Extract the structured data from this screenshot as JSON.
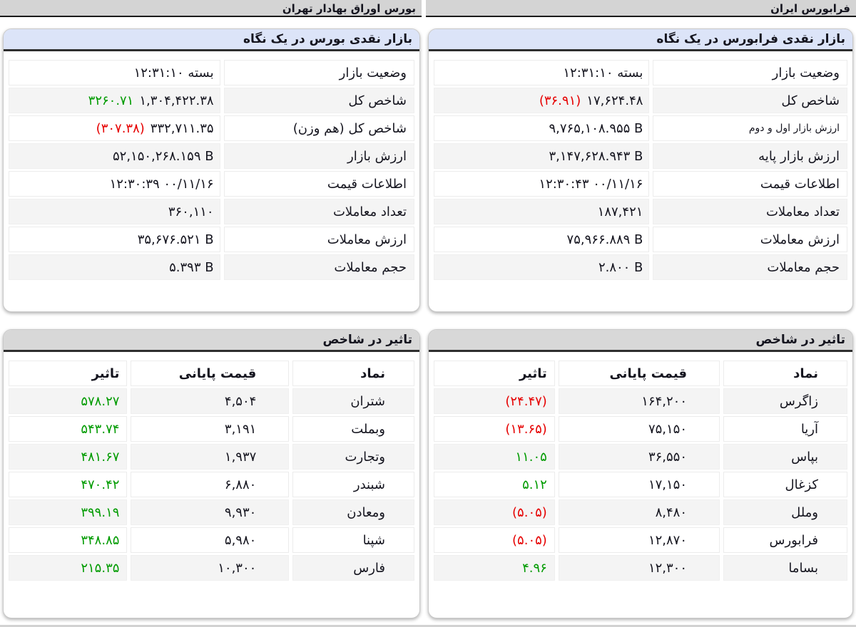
{
  "colors": {
    "positive": "#009b00",
    "negative": "#e60000",
    "summary_header": "#dce4f8",
    "table_header": "#d8d8d8",
    "section_bar": "#d4d4d4"
  },
  "sections": {
    "bourse_bar_title": "بورس اوراق بهادار تهران",
    "farabourse_bar_title": "فرابورس ایران"
  },
  "summary_bourse": {
    "title": "بازار نقدی بورس در یک نگاه",
    "rows": [
      {
        "label": "وضعیت بازار",
        "value": "بسته ۱۲:۳۱:۱۰"
      },
      {
        "label": "شاخص کل",
        "value": "۱,۳۰۴,۴۲۲.۳۸",
        "change": "۳۲۶۰.۷۱",
        "trend": "pos"
      },
      {
        "label": "شاخص کل (هم وزن)",
        "value": "۳۳۲,۷۱۱.۳۵",
        "change": "(۳۰۷.۳۸)",
        "trend": "neg"
      },
      {
        "label": "ارزش بازار",
        "value": "۵۲,۱۵۰,۲۶۸.۱۵۹ B"
      },
      {
        "label": "اطلاعات قیمت",
        "value": "۱۲:۳۰:۳۹ ۰۰/۱۱/۱۶"
      },
      {
        "label": "تعداد معاملات",
        "value": "۳۶۰,۱۱۰"
      },
      {
        "label": "ارزش معاملات",
        "value": "۳۵,۶۷۶.۵۲۱ B"
      },
      {
        "label": "حجم معاملات",
        "value": "۵.۳۹۳ B"
      }
    ]
  },
  "summary_farabourse": {
    "title": "بازار نقدی فرابورس در یک نگاه",
    "rows": [
      {
        "label": "وضعیت بازار",
        "value": "بسته ۱۲:۳۱:۱۰"
      },
      {
        "label": "شاخص کل",
        "value": "۱۷,۶۲۴.۴۸",
        "change": "(۳۶.۹۱)",
        "trend": "neg"
      },
      {
        "label": "ارزش بازار اول و دوم",
        "value": "۹,۷۶۵,۱۰۸.۹۵۵ B"
      },
      {
        "label": "ارزش بازار پایه",
        "value": "۳,۱۴۷,۶۲۸.۹۴۳ B"
      },
      {
        "label": "اطلاعات قیمت",
        "value": "۱۲:۳۰:۴۳ ۰۰/۱۱/۱۶"
      },
      {
        "label": "تعداد معاملات",
        "value": "۱۸۷,۴۲۱"
      },
      {
        "label": "ارزش معاملات",
        "value": "۷۵,۹۶۶.۸۸۹ B"
      },
      {
        "label": "حجم معاملات",
        "value": "۲.۸۰۰ B"
      }
    ]
  },
  "impact_bourse": {
    "title": "تاثیر در شاخص",
    "columns": {
      "symbol": "نماد",
      "close": "قیمت پایانی",
      "impact": "تاثیر"
    },
    "rows": [
      {
        "symbol": "شتران",
        "close": "۴,۵۰۴",
        "impact": "۵۷۸.۲۷",
        "trend": "pos"
      },
      {
        "symbol": "وبملت",
        "close": "۳,۱۹۱",
        "impact": "۵۴۳.۷۴",
        "trend": "pos"
      },
      {
        "symbol": "وتجارت",
        "close": "۱,۹۳۷",
        "impact": "۴۸۱.۶۷",
        "trend": "pos"
      },
      {
        "symbol": "شبندر",
        "close": "۶,۸۸۰",
        "impact": "۴۷۰.۴۲",
        "trend": "pos"
      },
      {
        "symbol": "ومعادن",
        "close": "۹,۹۳۰",
        "impact": "۳۹۹.۱۹",
        "trend": "pos"
      },
      {
        "symbol": "شپنا",
        "close": "۵,۹۸۰",
        "impact": "۳۴۸.۸۵",
        "trend": "pos"
      },
      {
        "symbol": "فارس",
        "close": "۱۰,۳۰۰",
        "impact": "۲۱۵.۳۵",
        "trend": "pos"
      }
    ]
  },
  "impact_farabourse": {
    "title": "تاثیر در شاخص",
    "columns": {
      "symbol": "نماد",
      "close": "قیمت پایانی",
      "impact": "تاثیر"
    },
    "rows": [
      {
        "symbol": "زاگرس",
        "close": "۱۶۴,۲۰۰",
        "impact": "(۲۴.۴۷)",
        "trend": "neg"
      },
      {
        "symbol": "آریا",
        "close": "۷۵,۱۵۰",
        "impact": "(۱۳.۶۵)",
        "trend": "neg"
      },
      {
        "symbol": "بپاس",
        "close": "۳۶,۵۵۰",
        "impact": "۱۱.۰۵",
        "trend": "pos"
      },
      {
        "symbol": "کزغال",
        "close": "۱۷,۱۵۰",
        "impact": "۵.۱۲",
        "trend": "pos"
      },
      {
        "symbol": "وملل",
        "close": "۸,۴۸۰",
        "impact": "(۵.۰۵)",
        "trend": "neg"
      },
      {
        "symbol": "فرابورس",
        "close": "۱۲,۸۷۰",
        "impact": "(۵.۰۵)",
        "trend": "neg"
      },
      {
        "symbol": "بساما",
        "close": "۱۲,۳۰۰",
        "impact": "۴.۹۶",
        "trend": "pos"
      }
    ]
  }
}
